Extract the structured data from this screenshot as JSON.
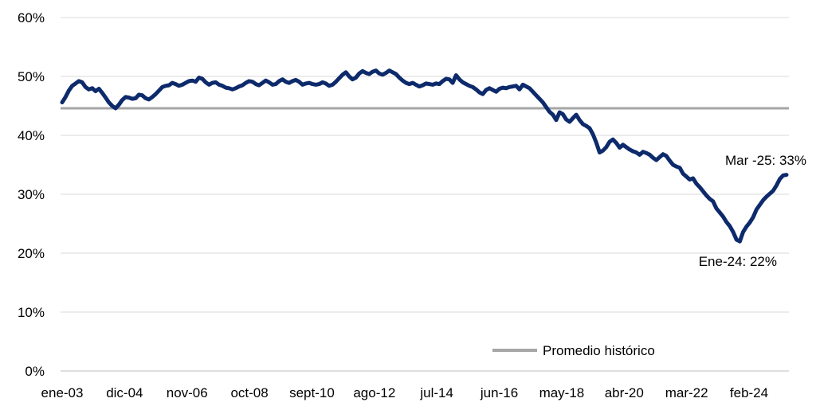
{
  "chart_data": {
    "type": "line",
    "x_tick_labels": [
      "ene-03",
      "dic-04",
      "nov-06",
      "oct-08",
      "sept-10",
      "ago-12",
      "jul-14",
      "jun-16",
      "may-18",
      "abr-20",
      "mar-22",
      "feb-24"
    ],
    "y_tick_labels": [
      "0%",
      "10%",
      "20%",
      "30%",
      "40%",
      "50%",
      "60%"
    ],
    "ylim": [
      0,
      60
    ],
    "y_unit": "%",
    "grid": "horizontal",
    "legend_position": "bottom-right",
    "colors": {
      "series": "#0d2a6b",
      "reference": "#a6a6a6",
      "grid": "#d9d9d9",
      "axis": "#bfbfbf"
    },
    "series": [
      {
        "values": [
          45.6,
          46.5,
          47.6,
          48.4,
          48.8,
          49.2,
          49.0,
          48.2,
          47.8,
          48.0,
          47.5,
          47.9,
          47.2,
          46.4,
          45.6,
          45.0,
          44.6,
          45.2,
          46.0,
          46.5,
          46.4,
          46.2,
          46.3,
          46.9,
          46.8,
          46.3,
          46.1,
          46.5,
          47.0,
          47.6,
          48.2,
          48.4,
          48.5,
          48.9,
          48.7,
          48.4,
          48.6,
          48.9,
          49.2,
          49.3,
          49.1,
          49.8,
          49.6,
          49.0,
          48.6,
          48.9,
          49.0,
          48.6,
          48.4,
          48.1,
          48.0,
          47.8,
          48.0,
          48.3,
          48.5,
          48.9,
          49.2,
          49.1,
          48.7,
          48.5,
          48.9,
          49.3,
          49.0,
          48.6,
          48.7,
          49.2,
          49.5,
          49.1,
          48.9,
          49.2,
          49.4,
          49.1,
          48.6,
          48.8,
          48.9,
          48.7,
          48.6,
          48.7,
          49.0,
          48.8,
          48.4,
          48.6,
          49.1,
          49.7,
          50.3,
          50.7,
          50.0,
          49.5,
          49.8,
          50.5,
          50.9,
          50.6,
          50.4,
          50.8,
          51.0,
          50.5,
          50.3,
          50.6,
          51.0,
          50.7,
          50.4,
          49.8,
          49.3,
          48.9,
          48.7,
          48.9,
          48.6,
          48.3,
          48.5,
          48.8,
          48.7,
          48.6,
          48.8,
          48.7,
          49.2,
          49.6,
          49.5,
          48.9,
          50.2,
          49.5,
          49.0,
          48.7,
          48.4,
          48.2,
          47.8,
          47.3,
          47.0,
          47.7,
          48.0,
          47.7,
          47.4,
          47.9,
          48.1,
          48.0,
          48.2,
          48.3,
          48.4,
          47.8,
          48.6,
          48.3,
          48.0,
          47.4,
          46.8,
          46.2,
          45.6,
          44.8,
          44.0,
          43.5,
          42.6,
          43.9,
          43.6,
          42.7,
          42.3,
          42.9,
          43.5,
          42.6,
          41.9,
          41.6,
          41.2,
          40.2,
          38.8,
          37.1,
          37.4,
          38.0,
          38.9,
          39.3,
          38.7,
          37.9,
          38.4,
          38.0,
          37.6,
          37.3,
          37.1,
          36.7,
          37.2,
          37.0,
          36.7,
          36.2,
          35.8,
          36.3,
          36.8,
          36.5,
          35.7,
          35.0,
          34.7,
          34.5,
          33.5,
          33.0,
          32.5,
          32.7,
          31.8,
          31.2,
          30.5,
          29.8,
          29.2,
          28.8,
          27.6,
          26.9,
          26.2,
          25.3,
          24.6,
          23.6,
          22.3,
          22.0,
          23.6,
          24.5,
          25.2,
          26.1,
          27.4,
          28.2,
          29.0,
          29.6,
          30.1,
          30.6,
          31.5,
          32.6,
          33.2,
          33.3
        ]
      }
    ],
    "reference_line": {
      "name": "Promedio histórico",
      "value": 44.6
    },
    "annotations": [
      {
        "text": "Mar -25: 33%"
      },
      {
        "text": "Ene-24: 22%"
      }
    ]
  }
}
